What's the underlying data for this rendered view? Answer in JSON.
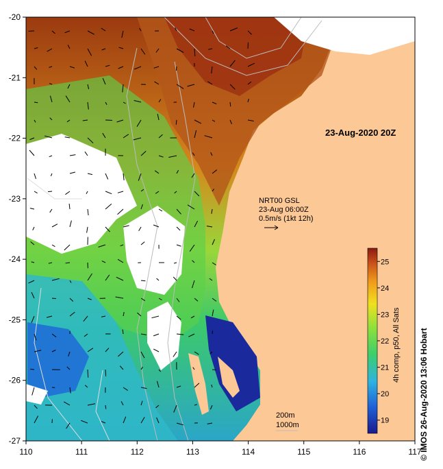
{
  "map": {
    "title": "23-Aug-2020 20Z",
    "lon_ticks": [
      "110",
      "111",
      "112",
      "113",
      "114",
      "115",
      "116",
      "117"
    ],
    "lat_ticks": [
      "-20",
      "-21",
      "-22",
      "-23",
      "-24",
      "-25",
      "-26",
      "-27"
    ],
    "lon_range": [
      110,
      117
    ],
    "lat_range": [
      -27,
      -20
    ],
    "current_legend": {
      "line1": "NRT00 GSL",
      "line2": "23-Aug 06:00Z",
      "line3": "0.5m/s (1kt 12h)"
    },
    "contours": {
      "line1": "200m",
      "line2": "1000m"
    }
  },
  "colorbar": {
    "label": "4h comp, p50, All Sats",
    "ticks": [
      "25",
      "24",
      "23",
      "22",
      "21",
      "20",
      "19"
    ],
    "range": [
      18.5,
      25.5
    ],
    "colors": [
      "#1a1a8c",
      "#1f5fd6",
      "#2eb3e0",
      "#3ecf6a",
      "#8ee03c",
      "#f0e020",
      "#f09a1a",
      "#c8501a",
      "#8a1a10"
    ]
  },
  "credit": "© IMOS 26-Aug-2020 13:06 Hobart",
  "colors": {
    "land": "#fcc896",
    "no_data": "#ffffff"
  }
}
